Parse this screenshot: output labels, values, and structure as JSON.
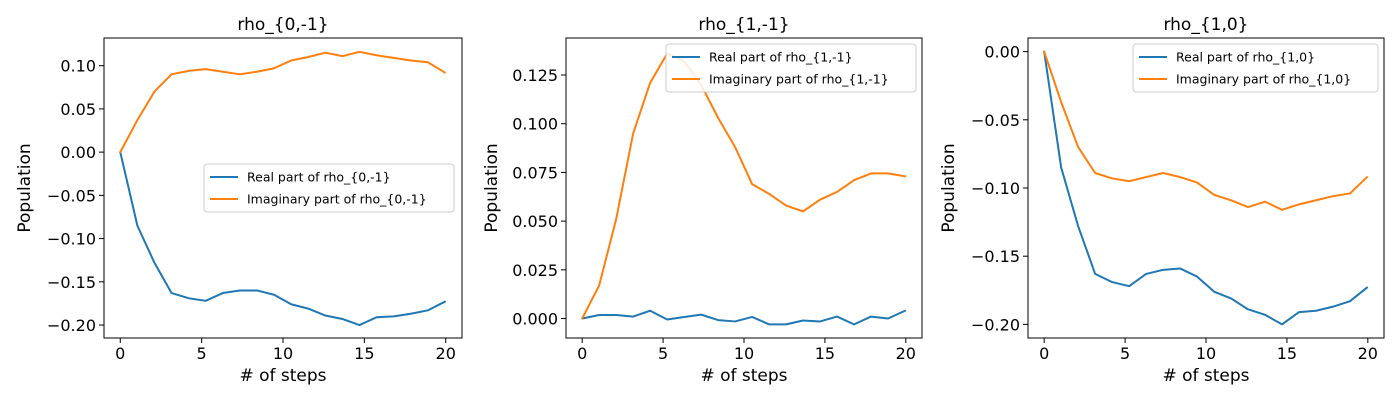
{
  "chart_data": [
    {
      "type": "line",
      "title": "rho_{0,-1}",
      "xlabel": "# of steps",
      "ylabel": "Population",
      "xlim": [
        -1,
        21
      ],
      "ylim": [
        -0.215,
        0.132
      ],
      "xticks": [
        0,
        5,
        10,
        15,
        20
      ],
      "xtick_labels": [
        "0",
        "5",
        "10",
        "15",
        "20"
      ],
      "yticks": [
        -0.2,
        -0.15,
        -0.1,
        -0.05,
        0.0,
        0.05,
        0.1
      ],
      "ytick_labels": [
        "−0.20",
        "−0.15",
        "−0.10",
        "−0.05",
        "0.00",
        "0.05",
        "0.10"
      ],
      "legend_position": "center-right",
      "x": [
        0,
        1.05,
        2.1,
        3.15,
        4.2,
        5.25,
        6.3,
        7.35,
        8.4,
        9.45,
        10.5,
        11.55,
        12.6,
        13.65,
        14.7,
        15.75,
        16.8,
        17.85,
        18.9,
        19.95
      ],
      "series": [
        {
          "name": "Real part of rho_{0,-1}",
          "color": "#1f77b4",
          "values": [
            0.0,
            -0.085,
            -0.128,
            -0.163,
            -0.169,
            -0.172,
            -0.163,
            -0.16,
            -0.16,
            -0.165,
            -0.176,
            -0.181,
            -0.189,
            -0.193,
            -0.2,
            -0.191,
            -0.19,
            -0.187,
            -0.183,
            -0.173
          ]
        },
        {
          "name": "Imaginary part of rho_{0,-1}",
          "color": "#ff7f0e",
          "values": [
            0.0,
            0.037,
            0.07,
            0.09,
            0.094,
            0.096,
            0.093,
            0.09,
            0.093,
            0.097,
            0.106,
            0.11,
            0.115,
            0.111,
            0.116,
            0.112,
            0.109,
            0.106,
            0.104,
            0.092
          ]
        }
      ]
    },
    {
      "type": "line",
      "title": "rho_{1,-1}",
      "xlabel": "# of steps",
      "ylabel": "Population",
      "xlim": [
        -1,
        21
      ],
      "ylim": [
        -0.01,
        0.144
      ],
      "xticks": [
        0,
        5,
        10,
        15,
        20
      ],
      "xtick_labels": [
        "0",
        "5",
        "10",
        "15",
        "20"
      ],
      "yticks": [
        0.0,
        0.025,
        0.05,
        0.075,
        0.1,
        0.125
      ],
      "ytick_labels": [
        "0.000",
        "0.025",
        "0.050",
        "0.075",
        "0.100",
        "0.125"
      ],
      "legend_position": "upper-right",
      "x": [
        0,
        1.05,
        2.1,
        3.15,
        4.2,
        5.25,
        6.3,
        7.35,
        8.4,
        9.45,
        10.5,
        11.55,
        12.6,
        13.65,
        14.7,
        15.75,
        16.8,
        17.85,
        18.9,
        19.95
      ],
      "series": [
        {
          "name": "Real part of rho_{1,-1}",
          "color": "#1f77b4",
          "values": [
            0.0,
            0.0018,
            0.0018,
            0.001,
            0.004,
            -0.0005,
            0.0008,
            0.002,
            -0.0008,
            -0.0015,
            0.0008,
            -0.003,
            -0.003,
            -0.001,
            -0.0015,
            0.001,
            -0.003,
            0.001,
            0.0,
            0.004
          ]
        },
        {
          "name": "Imaginary part of rho_{1,-1}",
          "color": "#ff7f0e",
          "values": [
            0.0,
            0.017,
            0.051,
            0.095,
            0.121,
            0.136,
            0.132,
            0.12,
            0.103,
            0.088,
            0.069,
            0.064,
            0.058,
            0.055,
            0.061,
            0.065,
            0.071,
            0.0745,
            0.0745,
            0.073
          ]
        }
      ]
    },
    {
      "type": "line",
      "title": "rho_{1,0}",
      "xlabel": "# of steps",
      "ylabel": "Population",
      "xlim": [
        -1,
        21
      ],
      "ylim": [
        -0.21,
        0.01
      ],
      "xticks": [
        0,
        5,
        10,
        15,
        20
      ],
      "xtick_labels": [
        "0",
        "5",
        "10",
        "15",
        "20"
      ],
      "yticks": [
        -0.2,
        -0.15,
        -0.1,
        -0.05,
        0.0
      ],
      "ytick_labels": [
        "−0.20",
        "−0.15",
        "−0.10",
        "−0.05",
        "0.00"
      ],
      "legend_position": "upper-right",
      "x": [
        0,
        1.05,
        2.1,
        3.15,
        4.2,
        5.25,
        6.3,
        7.35,
        8.4,
        9.45,
        10.5,
        11.55,
        12.6,
        13.65,
        14.7,
        15.75,
        16.8,
        17.85,
        18.9,
        19.95
      ],
      "series": [
        {
          "name": "Real part of rho_{1,0}",
          "color": "#1f77b4",
          "values": [
            0.0,
            -0.085,
            -0.128,
            -0.163,
            -0.169,
            -0.172,
            -0.163,
            -0.16,
            -0.159,
            -0.165,
            -0.176,
            -0.181,
            -0.189,
            -0.193,
            -0.2,
            -0.191,
            -0.19,
            -0.187,
            -0.183,
            -0.173
          ]
        },
        {
          "name": "Imaginary part of rho_{1,0}",
          "color": "#ff7f0e",
          "values": [
            0.0,
            -0.037,
            -0.07,
            -0.089,
            -0.093,
            -0.095,
            -0.092,
            -0.089,
            -0.092,
            -0.096,
            -0.105,
            -0.109,
            -0.114,
            -0.11,
            -0.116,
            -0.112,
            -0.109,
            -0.106,
            -0.104,
            -0.092
          ]
        }
      ]
    }
  ]
}
